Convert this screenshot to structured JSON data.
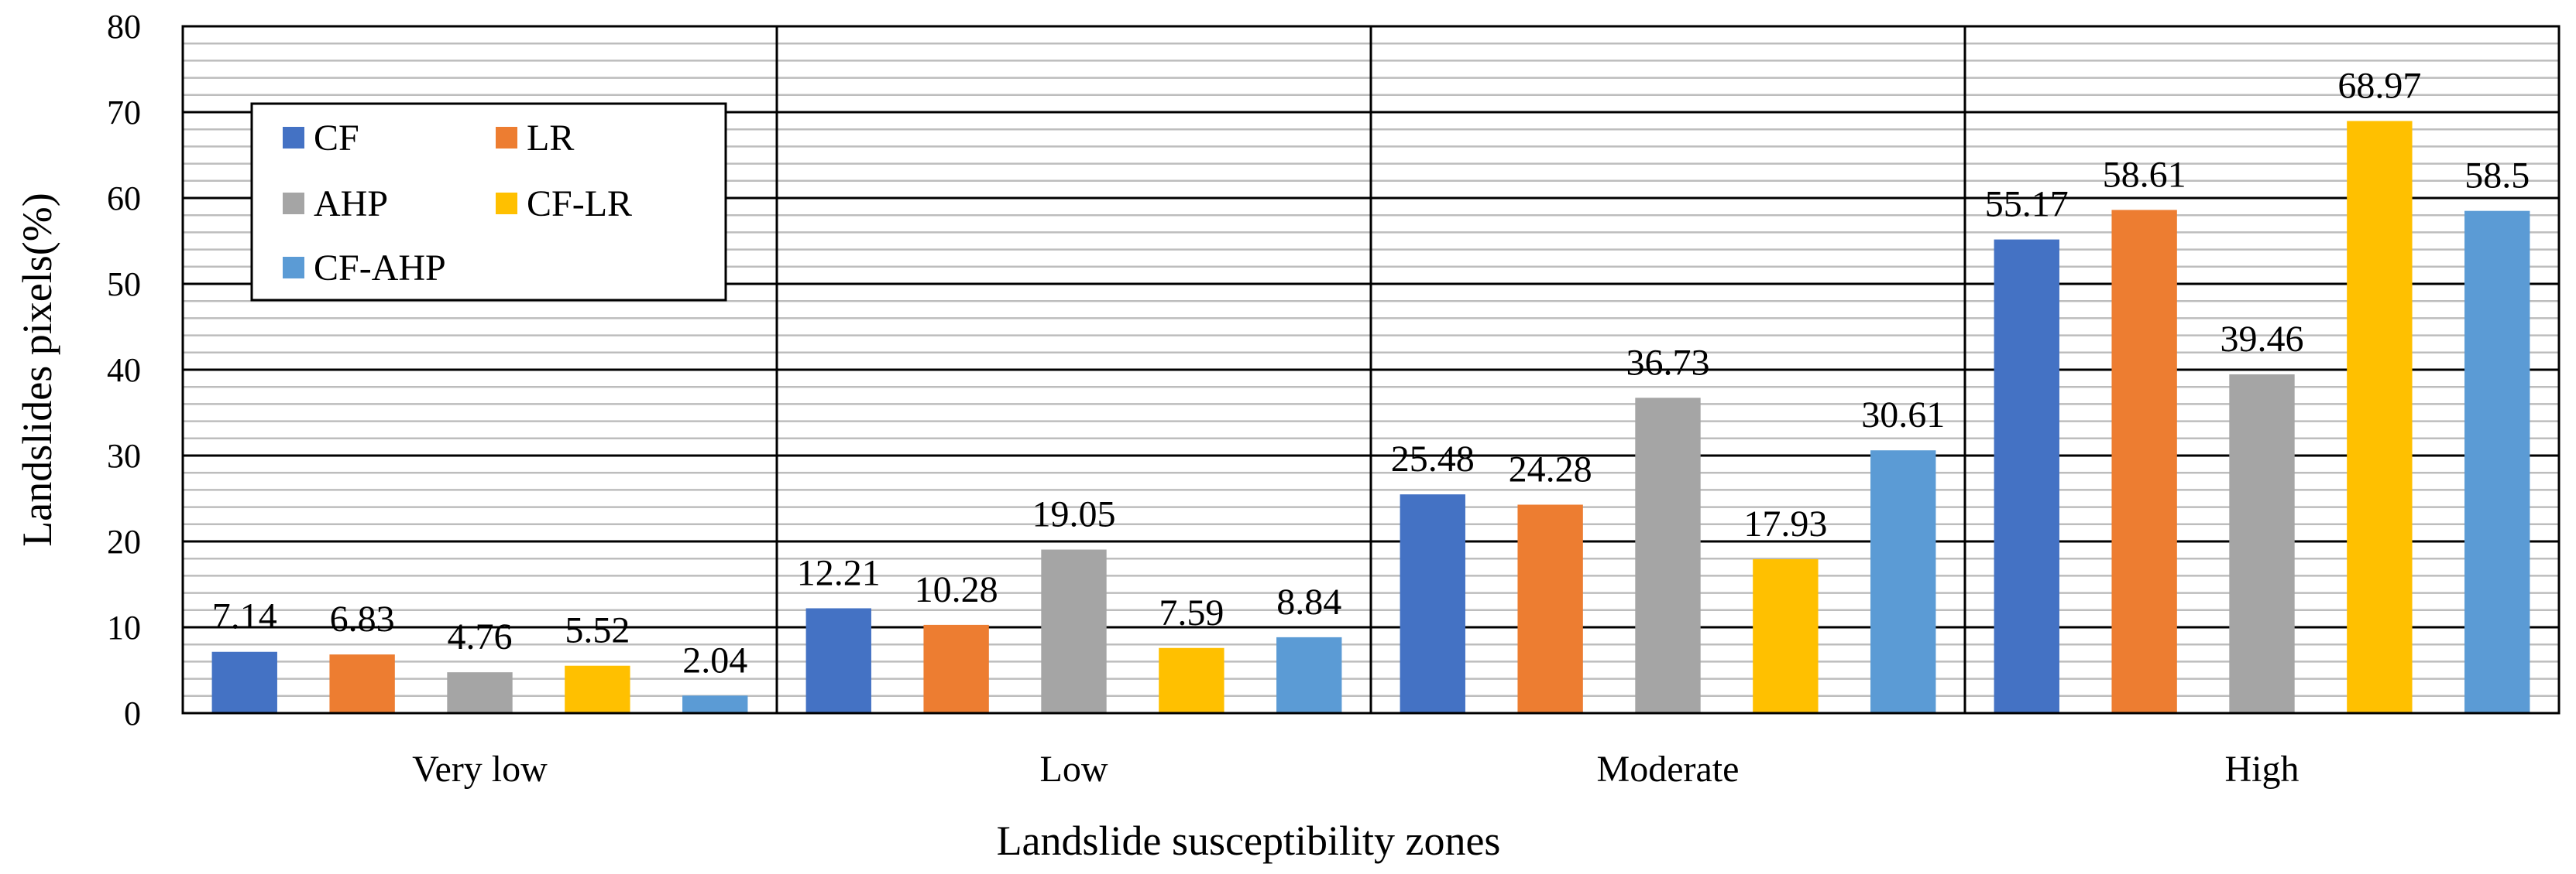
{
  "chart_data": {
    "type": "bar",
    "title": "",
    "xlabel": "Landslide susceptibility zones",
    "ylabel": "Landslides pixels(%)",
    "ylim": [
      0,
      80
    ],
    "y_major_step": 10,
    "y_minor_step": 2,
    "grid": true,
    "legend_position": "top-left",
    "legend_columns": 2,
    "categories": [
      "Very low",
      "Low",
      "Moderate",
      "High"
    ],
    "series": [
      {
        "name": "CF",
        "color": "#4472C4",
        "values": [
          7.14,
          12.21,
          25.48,
          55.17
        ],
        "labels": [
          "7.14",
          "12.21",
          "25.48",
          "55.17"
        ]
      },
      {
        "name": "LR",
        "color": "#ED7D31",
        "values": [
          6.83,
          10.28,
          24.28,
          58.61
        ],
        "labels": [
          "6.83",
          "10.28",
          "24.28",
          "58.61"
        ]
      },
      {
        "name": "AHP",
        "color": "#A5A5A5",
        "values": [
          4.76,
          19.05,
          36.73,
          39.46
        ],
        "labels": [
          "4.76",
          "19.05",
          "36.73",
          "39.46"
        ]
      },
      {
        "name": "CF-LR",
        "color": "#FFC000",
        "values": [
          5.52,
          7.59,
          17.93,
          68.97
        ],
        "labels": [
          "5.52",
          "7.59",
          "17.93",
          "68.97"
        ]
      },
      {
        "name": "CF-AHP",
        "color": "#5B9BD5",
        "values": [
          2.04,
          8.84,
          30.61,
          58.5
        ],
        "labels": [
          "2.04",
          "8.84",
          "30.61",
          "58.5"
        ]
      }
    ]
  }
}
